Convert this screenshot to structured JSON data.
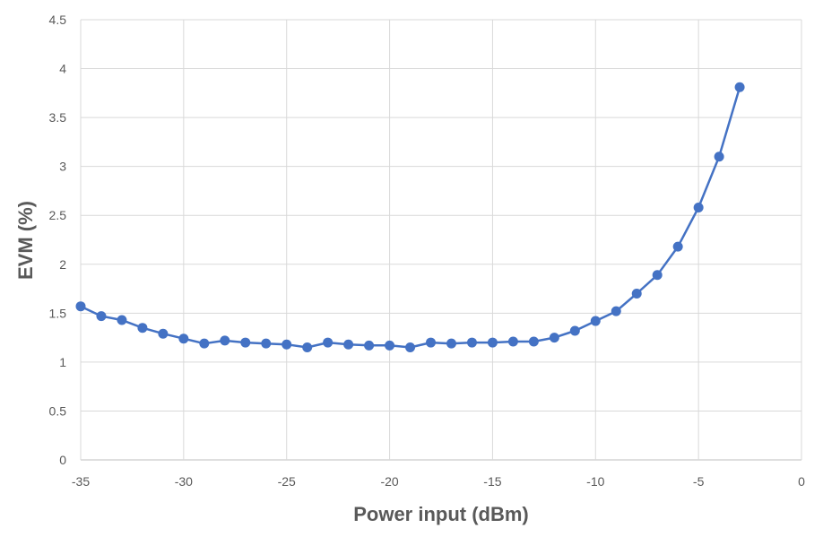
{
  "chart_data": {
    "type": "line",
    "title": "",
    "xlabel": "Power input (dBm)",
    "ylabel": "EVM (%)",
    "xlim": [
      -35,
      0
    ],
    "ylim": [
      0,
      4.5
    ],
    "x_ticks": [
      -35,
      -30,
      -25,
      -20,
      -15,
      -10,
      -5,
      0
    ],
    "y_ticks": [
      0,
      0.5,
      1,
      1.5,
      2,
      2.5,
      3,
      3.5,
      4,
      4.5
    ],
    "grid": true,
    "legend": "none",
    "series": [
      {
        "color": "#4472C4",
        "marker": "circle",
        "x": [
          -35,
          -34,
          -33,
          -32,
          -31,
          -30,
          -29,
          -28,
          -27,
          -26,
          -25,
          -24,
          -23,
          -22,
          -21,
          -20,
          -19,
          -18,
          -17,
          -16,
          -15,
          -14,
          -13,
          -12,
          -11,
          -10,
          -9,
          -8,
          -7,
          -6,
          -5,
          -4,
          -3
        ],
        "y": [
          1.57,
          1.47,
          1.43,
          1.35,
          1.29,
          1.24,
          1.19,
          1.22,
          1.2,
          1.19,
          1.18,
          1.15,
          1.2,
          1.18,
          1.17,
          1.17,
          1.15,
          1.2,
          1.19,
          1.2,
          1.2,
          1.21,
          1.21,
          1.25,
          1.32,
          1.42,
          1.52,
          1.7,
          1.89,
          2.18,
          2.58,
          3.1,
          3.81
        ]
      }
    ]
  },
  "style": {
    "grid_color": "#d9d9d9",
    "axis_color": "#bfbfbf"
  }
}
